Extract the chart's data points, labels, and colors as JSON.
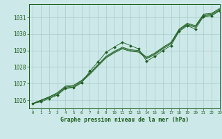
{
  "title": "Graphe pression niveau de la mer (hPa)",
  "bg_color": "#cce8e8",
  "grid_color": "#aacccc",
  "line_color": "#1a5c1a",
  "marker_color": "#1a5c1a",
  "xlim": [
    -0.5,
    23
  ],
  "ylim": [
    1025.5,
    1031.8
  ],
  "yticks": [
    1026,
    1027,
    1028,
    1029,
    1030,
    1031
  ],
  "xticks": [
    0,
    1,
    2,
    3,
    4,
    5,
    6,
    7,
    8,
    9,
    10,
    11,
    12,
    13,
    14,
    15,
    16,
    17,
    18,
    19,
    20,
    21,
    22,
    23
  ],
  "hours": [
    0,
    1,
    2,
    3,
    4,
    5,
    6,
    7,
    8,
    9,
    10,
    11,
    12,
    13,
    14,
    15,
    16,
    17,
    18,
    19,
    20,
    21,
    22,
    23
  ],
  "p_main": [
    1025.8,
    1025.9,
    1026.1,
    1026.3,
    1026.7,
    1026.75,
    1027.05,
    1027.75,
    1028.3,
    1028.9,
    1029.2,
    1029.5,
    1029.3,
    1029.1,
    1028.35,
    1028.65,
    1029.0,
    1029.3,
    1030.15,
    1030.5,
    1030.3,
    1031.05,
    1031.1,
    1031.4
  ],
  "p_l2": [
    1025.8,
    1025.95,
    1026.15,
    1026.35,
    1026.75,
    1026.8,
    1027.1,
    1027.55,
    1028.05,
    1028.55,
    1028.85,
    1029.1,
    1028.95,
    1028.9,
    1028.5,
    1028.75,
    1029.1,
    1029.4,
    1030.2,
    1030.55,
    1030.4,
    1031.1,
    1031.15,
    1031.45
  ],
  "p_l3": [
    1025.8,
    1026.0,
    1026.2,
    1026.4,
    1026.8,
    1026.85,
    1027.15,
    1027.6,
    1028.1,
    1028.6,
    1028.9,
    1029.15,
    1029.0,
    1028.95,
    1028.55,
    1028.8,
    1029.15,
    1029.45,
    1030.25,
    1030.6,
    1030.45,
    1031.15,
    1031.2,
    1031.5
  ],
  "p_l4": [
    1025.8,
    1026.0,
    1026.2,
    1026.45,
    1026.85,
    1026.9,
    1027.2,
    1027.65,
    1028.15,
    1028.65,
    1028.95,
    1029.2,
    1029.05,
    1029.0,
    1028.6,
    1028.85,
    1029.2,
    1029.5,
    1030.3,
    1030.65,
    1030.5,
    1031.2,
    1031.25,
    1031.55
  ]
}
